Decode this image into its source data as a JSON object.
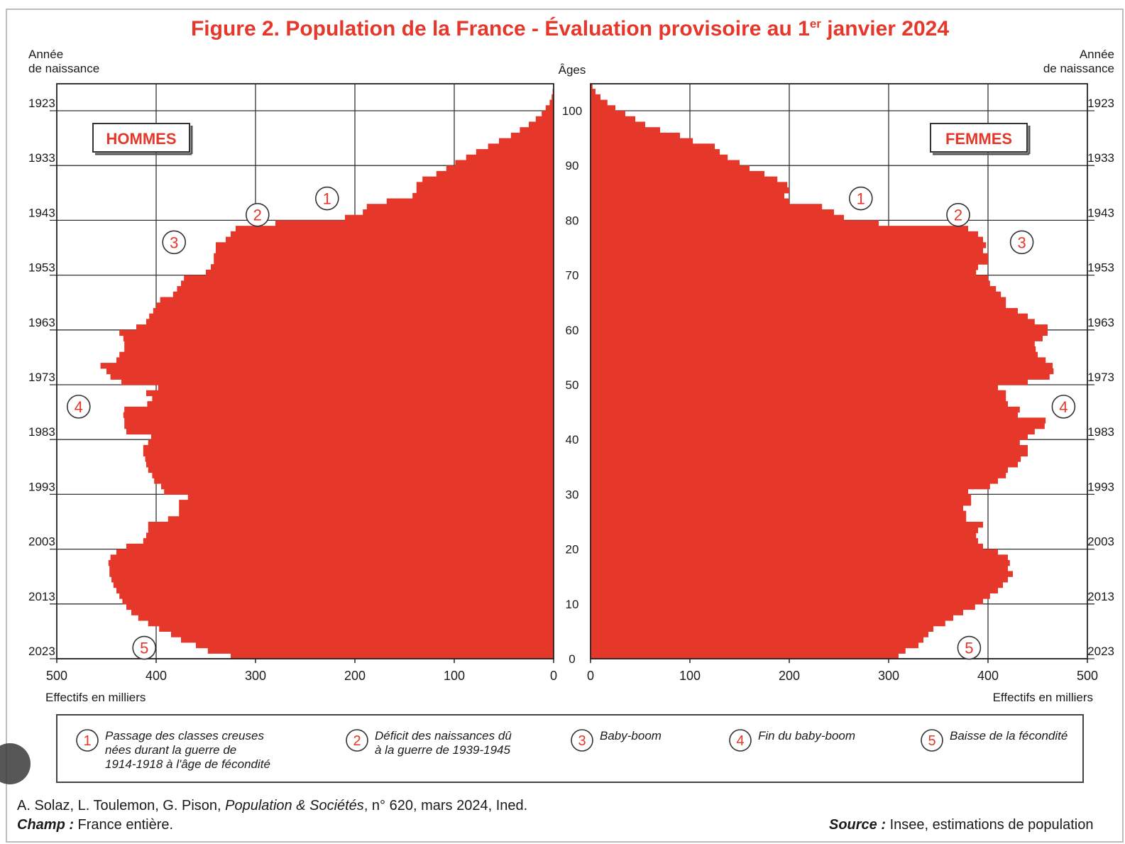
{
  "chart_data": {
    "type": "bar",
    "orientation": "horizontal",
    "layout": "population-pyramid",
    "title": "Figure 2. Population de la France - Évaluation provisoire au 1er janvier 2024",
    "title_main": "Figure 2. Population de la France - Évaluation provisoire au 1",
    "title_sup": "er",
    "title_end": " janvier 2024",
    "left_axis_title_1": "Année",
    "left_axis_title_2": "de naissance",
    "right_axis_title_1": "Année",
    "right_axis_title_2": "de naissance",
    "center_axis_title": "Âges",
    "xlabel_left": "Effectifs en milliers",
    "xlabel_right": "Effectifs en milliers",
    "xlim": [
      0,
      500
    ],
    "x_ticks": [
      "0",
      "100",
      "200",
      "300",
      "400",
      "500"
    ],
    "age_range": [
      0,
      105
    ],
    "age_ticks": [
      "0",
      "10",
      "20",
      "30",
      "40",
      "50",
      "60",
      "70",
      "80",
      "90",
      "100"
    ],
    "birth_year_ticks": [
      "2023",
      "2013",
      "2003",
      "1993",
      "1983",
      "1973",
      "1963",
      "1953",
      "1943",
      "1933",
      "1923"
    ],
    "grid": true,
    "bar_color": "#e5372a",
    "accent_color": "#e5372a",
    "ages": [
      0,
      1,
      2,
      3,
      4,
      5,
      6,
      7,
      8,
      9,
      10,
      11,
      12,
      13,
      14,
      15,
      16,
      17,
      18,
      19,
      20,
      21,
      22,
      23,
      24,
      25,
      26,
      27,
      28,
      29,
      30,
      31,
      32,
      33,
      34,
      35,
      36,
      37,
      38,
      39,
      40,
      41,
      42,
      43,
      44,
      45,
      46,
      47,
      48,
      49,
      50,
      51,
      52,
      53,
      54,
      55,
      56,
      57,
      58,
      59,
      60,
      61,
      62,
      63,
      64,
      65,
      66,
      67,
      68,
      69,
      70,
      71,
      72,
      73,
      74,
      75,
      76,
      77,
      78,
      79,
      80,
      81,
      82,
      83,
      84,
      85,
      86,
      87,
      88,
      89,
      90,
      91,
      92,
      93,
      94,
      95,
      96,
      97,
      98,
      99,
      100,
      101,
      102,
      103,
      104
    ],
    "series": [
      {
        "name": "HOMMES",
        "values": [
          325,
          348,
          360,
          375,
          385,
          397,
          408,
          418,
          425,
          430,
          434,
          437,
          440,
          443,
          445,
          447,
          447,
          448,
          446,
          440,
          430,
          413,
          410,
          408,
          408,
          388,
          377,
          377,
          377,
          368,
          392,
          395,
          402,
          404,
          408,
          410,
          411,
          413,
          413,
          408,
          405,
          430,
          432,
          432,
          433,
          432,
          409,
          404,
          410,
          398,
          435,
          446,
          450,
          456,
          440,
          437,
          432,
          432,
          433,
          437,
          420,
          410,
          407,
          403,
          400,
          396,
          383,
          379,
          375,
          372,
          350,
          345,
          342,
          342,
          340,
          340,
          330,
          325,
          320,
          280,
          210,
          192,
          188,
          168,
          142,
          138,
          138,
          132,
          118,
          108,
          99,
          88,
          78,
          66,
          55,
          43,
          34,
          25,
          18,
          12,
          8,
          4,
          2,
          1,
          0
        ]
      },
      {
        "name": "FEMMES",
        "values": [
          310,
          317,
          330,
          335,
          340,
          345,
          357,
          365,
          375,
          387,
          395,
          402,
          410,
          415,
          420,
          425,
          420,
          422,
          420,
          410,
          395,
          390,
          388,
          390,
          395,
          378,
          378,
          375,
          383,
          383,
          380,
          402,
          410,
          418,
          420,
          430,
          433,
          440,
          440,
          432,
          440,
          447,
          457,
          458,
          430,
          432,
          420,
          418,
          418,
          410,
          440,
          462,
          466,
          465,
          458,
          450,
          448,
          447,
          455,
          460,
          460,
          447,
          440,
          430,
          418,
          418,
          413,
          408,
          402,
          400,
          388,
          390,
          400,
          400,
          395,
          398,
          395,
          390,
          380,
          290,
          255,
          245,
          233,
          200,
          195,
          200,
          198,
          188,
          175,
          160,
          150,
          138,
          130,
          125,
          103,
          90,
          70,
          55,
          45,
          35,
          25,
          17,
          10,
          5,
          2
        ]
      }
    ],
    "hommes_label": "HOMMES",
    "femmes_label": "FEMMES",
    "annotations": [
      {
        "num": "1",
        "side": "HOMMES",
        "age": 84,
        "value": 228
      },
      {
        "num": "2",
        "side": "HOMMES",
        "age": 81,
        "value": 298
      },
      {
        "num": "3",
        "side": "HOMMES",
        "age": 76,
        "value": 382
      },
      {
        "num": "4",
        "side": "HOMMES",
        "age": 46,
        "value": 478
      },
      {
        "num": "5",
        "side": "HOMMES",
        "age": 2,
        "value": 412
      },
      {
        "num": "1",
        "side": "FEMMES",
        "age": 84,
        "value": 272
      },
      {
        "num": "2",
        "side": "FEMMES",
        "age": 81,
        "value": 370
      },
      {
        "num": "3",
        "side": "FEMMES",
        "age": 76,
        "value": 434
      },
      {
        "num": "4",
        "side": "FEMMES",
        "age": 46,
        "value": 476
      },
      {
        "num": "5",
        "side": "FEMMES",
        "age": 2,
        "value": 381
      }
    ],
    "legend": [
      {
        "num": "1",
        "lines": [
          "Passage des classes creuses",
          "nées durant la guerre de",
          "1914-1918 à l'âge de fécondité"
        ]
      },
      {
        "num": "2",
        "lines": [
          "Déficit des naissances dû",
          "à la guerre de 1939-1945"
        ]
      },
      {
        "num": "3",
        "lines": [
          "Baby-boom"
        ]
      },
      {
        "num": "4",
        "lines": [
          "Fin du baby-boom"
        ]
      },
      {
        "num": "5",
        "lines": [
          "Baisse de la fécondité"
        ]
      }
    ],
    "credit_authors": "A. Solaz, L. Toulemon, G. Pison, ",
    "credit_journal": "Population & Sociétés",
    "credit_rest": ", n° 620, mars 2024, Ined.",
    "scope_label": "Champ :",
    "scope_value": " France entière.",
    "source_label": "Source :",
    "source_value": " Insee, estimations de population"
  }
}
